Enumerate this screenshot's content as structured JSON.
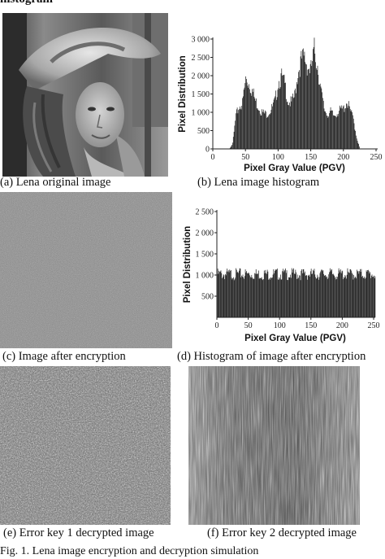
{
  "header": {
    "cut_title": "histogram"
  },
  "panels": {
    "a": {
      "caption": "(a) Lena original image"
    },
    "b": {
      "caption": "(b) Lena image histogram"
    },
    "c": {
      "caption": "(c) Image after encryption"
    },
    "d": {
      "caption": "(d) Histogram of image after encryption"
    },
    "e": {
      "caption": "(e) Error key 1 decrypted image"
    },
    "f": {
      "caption": "(f) Error key 2 decrypted image"
    }
  },
  "figure_caption": "Fig. 1. Lena image encryption and decryption simulation",
  "chart_data": [
    {
      "type": "bar",
      "title": "",
      "xlabel": "Pixel Gray Value (PGV)",
      "ylabel": "Pixel Distribution",
      "xlim": [
        0,
        250
      ],
      "ylim": [
        0,
        3000
      ],
      "x_ticks": [
        "0",
        "50",
        "100",
        "150",
        "200",
        "250"
      ],
      "y_ticks": [
        "0",
        "500",
        "1 000",
        "1 500",
        "2 000",
        "2 500",
        "3 000"
      ],
      "grid": false,
      "x": [
        25,
        30,
        35,
        40,
        45,
        50,
        55,
        60,
        65,
        70,
        75,
        80,
        85,
        90,
        95,
        100,
        105,
        110,
        115,
        120,
        125,
        130,
        135,
        140,
        145,
        150,
        155,
        160,
        165,
        170,
        175,
        180,
        185,
        190,
        195,
        200,
        205,
        210,
        215,
        220,
        225
      ],
      "values": [
        0,
        150,
        900,
        1150,
        1250,
        1900,
        1800,
        1600,
        1300,
        1150,
        1000,
        950,
        1000,
        1100,
        1300,
        1850,
        1950,
        1750,
        1300,
        1250,
        1450,
        2100,
        2400,
        2500,
        2250,
        2150,
        2700,
        2300,
        1600,
        1100,
        950,
        1000,
        900,
        1000,
        1050,
        1100,
        1300,
        1050,
        800,
        300,
        0
      ]
    },
    {
      "type": "bar",
      "title": "",
      "xlabel": "Pixel Gray Value (PGV)",
      "ylabel": "Pixel Distribution",
      "xlim": [
        0,
        250
      ],
      "ylim": [
        0,
        2500
      ],
      "x_ticks": [
        "0",
        "50",
        "100",
        "150",
        "200",
        "250"
      ],
      "y_ticks": [
        "500",
        "1 000",
        "1 500",
        "2 000",
        "2 500"
      ],
      "grid": false,
      "x": [
        0,
        255
      ],
      "values": [
        1020,
        1020
      ]
    }
  ],
  "colors": {
    "bar": "#1a1a1a",
    "noise_gray": "#7a7a7a",
    "axis": "#222222"
  }
}
